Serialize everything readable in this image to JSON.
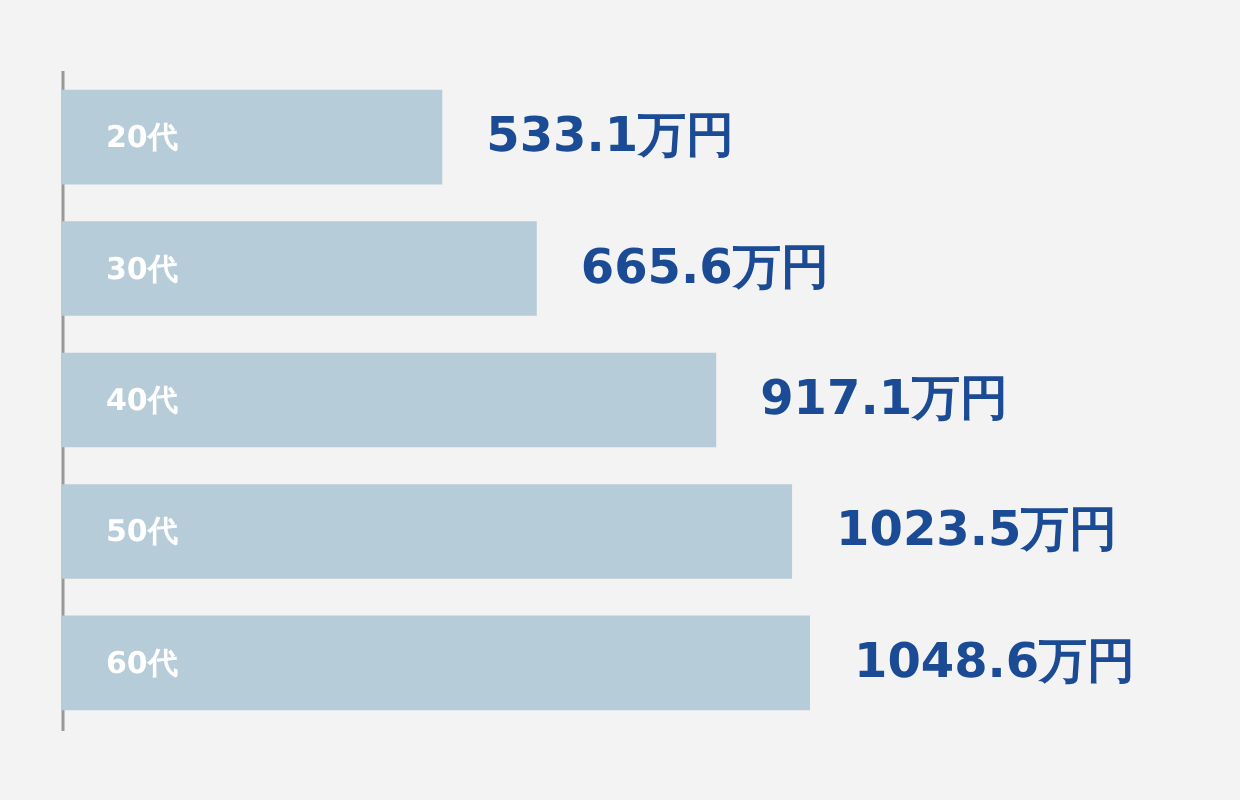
{
  "chart_data": {
    "type": "bar",
    "orientation": "horizontal",
    "categories": [
      "20代",
      "30代",
      "40代",
      "50代",
      "60代"
    ],
    "values": [
      533.1,
      665.6,
      917.1,
      1023.5,
      1048.6
    ],
    "color": "#b7ccd9",
    "value_labels": [
      "533.1万円",
      "665.6万円",
      "917.1万円",
      "1023.5万円",
      "1048.6万円"
    ]
  }
}
